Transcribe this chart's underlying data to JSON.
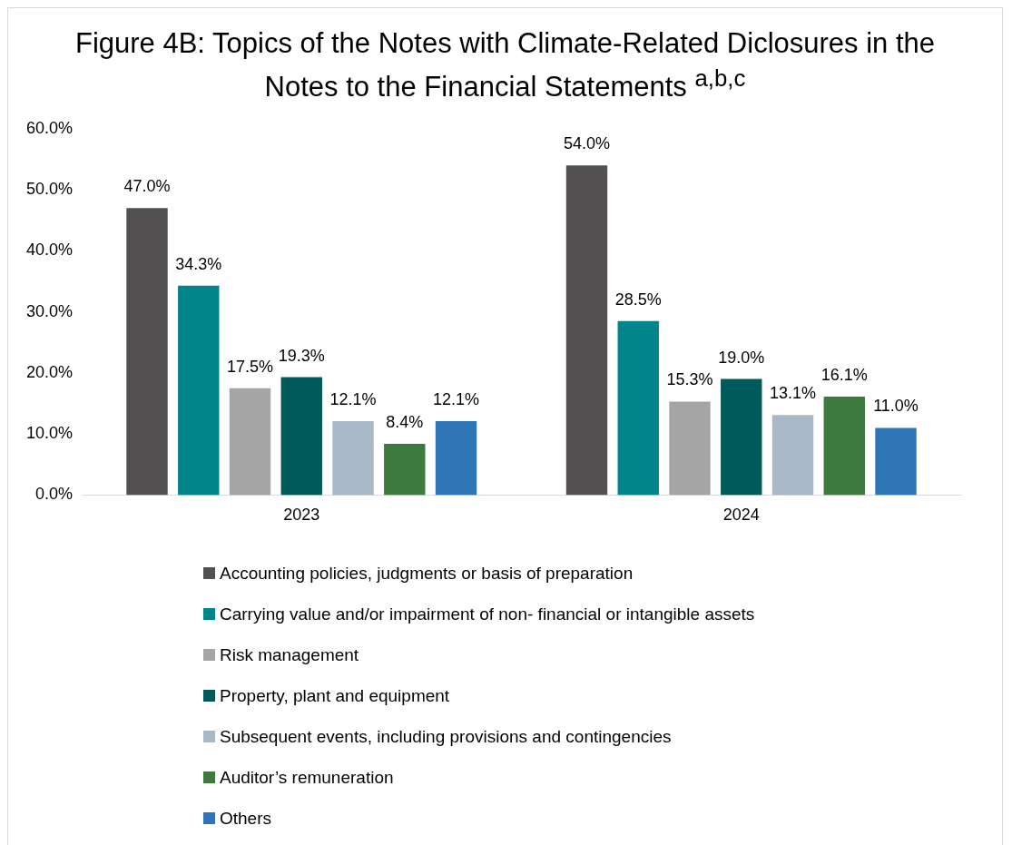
{
  "chart_data": {
    "type": "bar",
    "title": "Figure 4B: Topics of the Notes with Climate-Related Diclosures in the Notes to the Financial Statements $^{a,b,c}$",
    "categories": [
      "2023",
      "2024"
    ],
    "series": [
      {
        "name": "Accounting policies, judgments or basis of preparation",
        "color": "#525050",
        "values": [
          47.0,
          54.0
        ],
        "value_labels": [
          "47.0%",
          "54.0%"
        ]
      },
      {
        "name": "Carrying value and/or impairment of non- financial or intangible assets",
        "color": "#00858a",
        "values": [
          34.3,
          28.5
        ],
        "value_labels": [
          "34.3%",
          "28.5%"
        ]
      },
      {
        "name": "Risk management",
        "color": "#a5a5a5",
        "values": [
          17.5,
          15.3
        ],
        "value_labels": [
          "17.5%",
          "15.3%"
        ]
      },
      {
        "name": "Property, plant and equipment",
        "color": "#005a5a",
        "values": [
          19.3,
          19.0
        ],
        "value_labels": [
          "19.3%",
          "19.0%"
        ]
      },
      {
        "name": "Subsequent events, including provisions and contingencies",
        "color": "#a9b8c6",
        "values": [
          12.1,
          13.1
        ],
        "value_labels": [
          "12.1%",
          "13.1%"
        ]
      },
      {
        "name": "Auditor’s remuneration",
        "color": "#3d7a3d",
        "values": [
          8.4,
          16.1
        ],
        "value_labels": [
          "8.4%",
          "16.1%"
        ]
      },
      {
        "name": "Others",
        "color": "#2e75b6",
        "values": [
          12.1,
          11.0
        ],
        "value_labels": [
          "12.1%",
          "11.0%"
        ]
      }
    ],
    "ylim": [
      0,
      60
    ],
    "yticks": [
      {
        "value": 0,
        "label": "0.0%"
      },
      {
        "value": 10,
        "label": "10.0%"
      },
      {
        "value": 20,
        "label": "20.0%"
      },
      {
        "value": 30,
        "label": "30.0%"
      },
      {
        "value": 40,
        "label": "40.0%"
      },
      {
        "value": 50,
        "label": "50.0%"
      },
      {
        "value": 60,
        "label": "60.0%"
      }
    ],
    "grid": false,
    "legend": "bottom"
  }
}
